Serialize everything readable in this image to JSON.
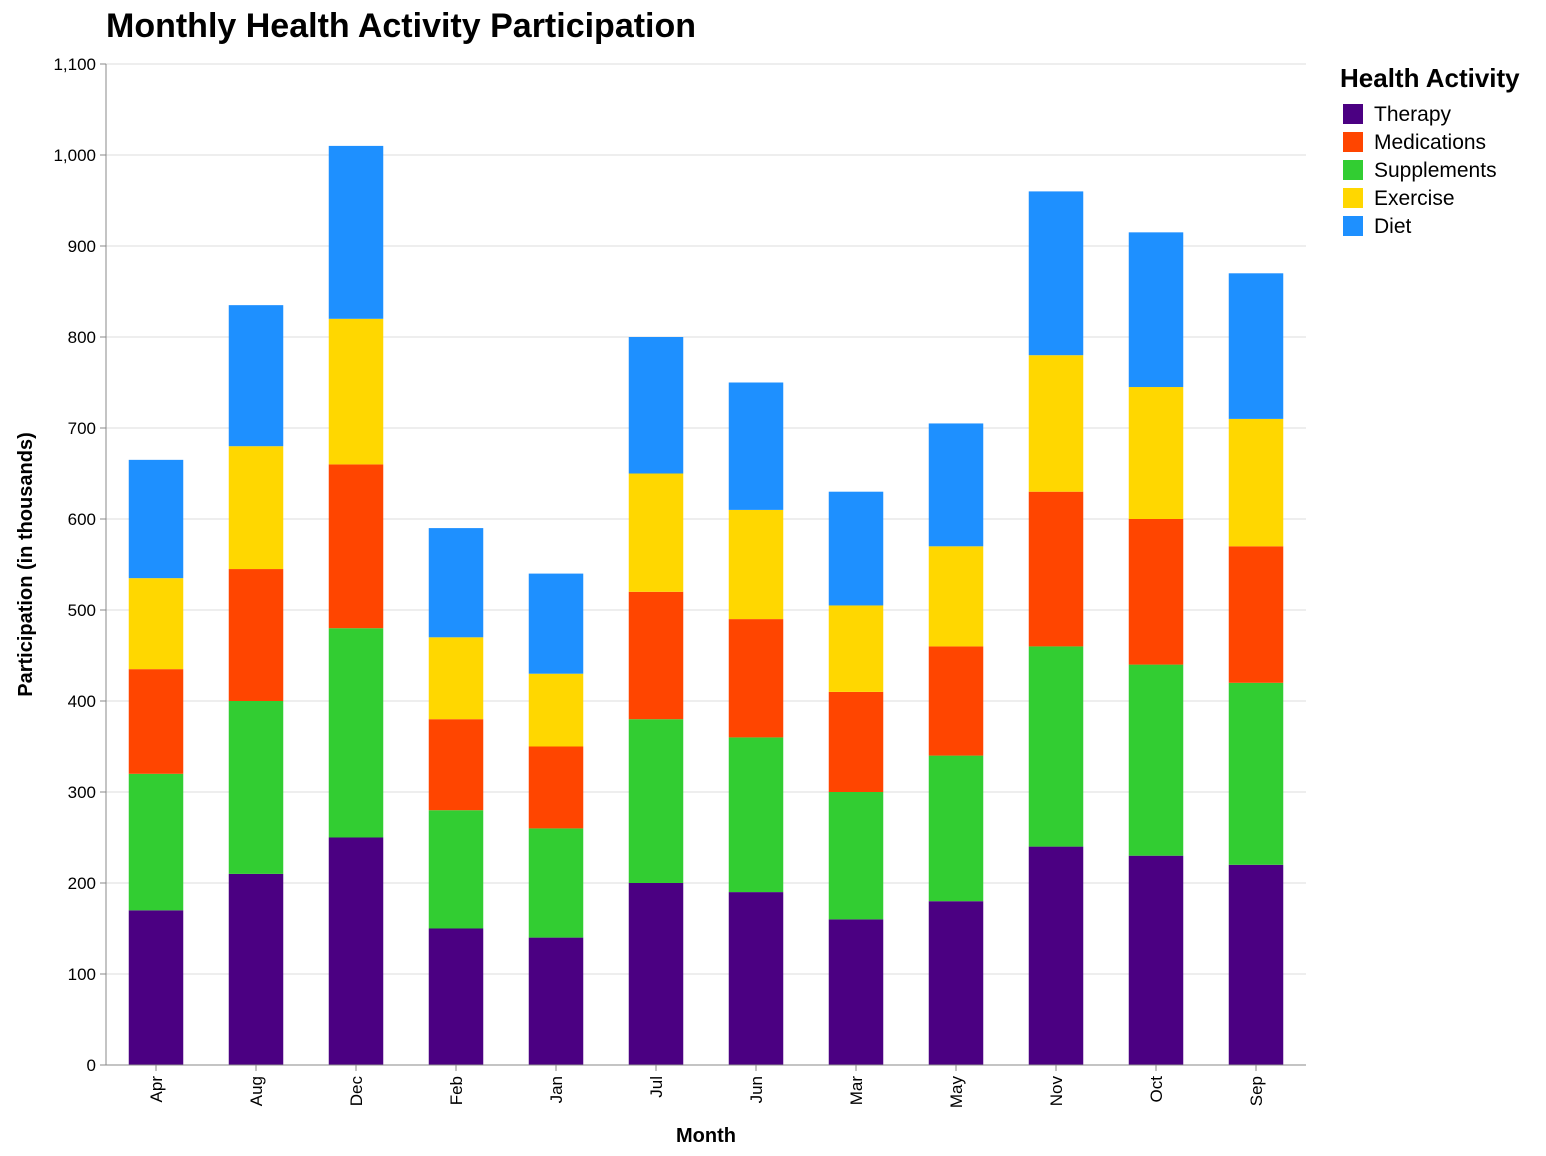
{
  "chart_data": {
    "type": "bar",
    "stacked": true,
    "title": "Monthly Health Activity Participation",
    "xlabel": "Month",
    "ylabel": "Participation (in thousands)",
    "ylim": [
      0,
      1100
    ],
    "yticks": [
      "0",
      "100",
      "200",
      "300",
      "400",
      "500",
      "600",
      "700",
      "800",
      "900",
      "1,000",
      "1,100"
    ],
    "grid": true,
    "legend_title": "Health Activity",
    "legend_position": "right",
    "categories": [
      "Apr",
      "Aug",
      "Dec",
      "Feb",
      "Jan",
      "Jul",
      "Jun",
      "Mar",
      "May",
      "Nov",
      "Oct",
      "Sep"
    ],
    "series": [
      {
        "name": "Therapy",
        "color": "#4b0082",
        "values": [
          170,
          210,
          250,
          150,
          140,
          200,
          190,
          160,
          180,
          240,
          230,
          220
        ]
      },
      {
        "name": "Supplements",
        "color": "#32cd32",
        "values": [
          150,
          190,
          230,
          130,
          120,
          180,
          170,
          140,
          160,
          220,
          210,
          200
        ]
      },
      {
        "name": "Medications",
        "color": "#ff4500",
        "values": [
          115,
          145,
          180,
          100,
          90,
          140,
          130,
          110,
          120,
          170,
          160,
          150
        ]
      },
      {
        "name": "Exercise",
        "color": "#ffd700",
        "values": [
          100,
          135,
          160,
          90,
          80,
          130,
          120,
          95,
          110,
          150,
          145,
          140
        ]
      },
      {
        "name": "Diet",
        "color": "#1e90ff",
        "values": [
          130,
          155,
          190,
          120,
          110,
          150,
          140,
          125,
          135,
          180,
          170,
          160
        ]
      }
    ],
    "legend_order": [
      "Therapy",
      "Medications",
      "Supplements",
      "Exercise",
      "Diet"
    ]
  }
}
